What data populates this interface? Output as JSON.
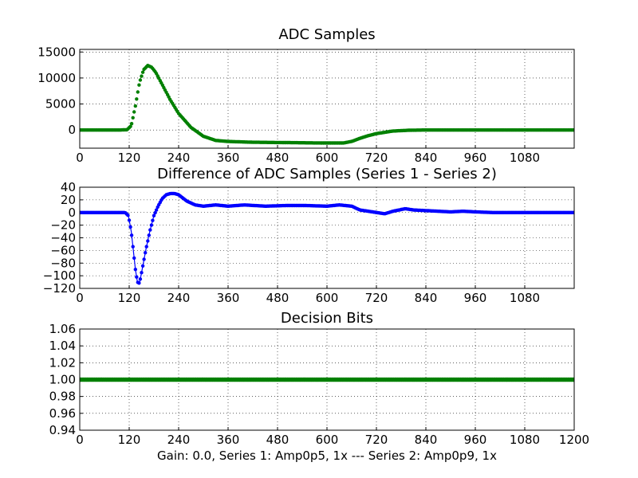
{
  "chart_data": [
    {
      "type": "scatter",
      "title": "ADC Samples",
      "xlabel": "",
      "ylabel": "",
      "xlim": [
        0,
        1200
      ],
      "ylim": [
        -3500,
        15500
      ],
      "xticks": [
        "0",
        "120",
        "240",
        "360",
        "480",
        "600",
        "720",
        "840",
        "960",
        "1080"
      ],
      "yticks": [
        "15000",
        "10000",
        "5000",
        "0"
      ],
      "grid": true,
      "colors": [
        "#ffffff",
        "#008000"
      ],
      "series": [
        {
          "x": [
            0,
            100,
            115,
            125,
            135,
            145,
            155,
            165,
            175,
            185,
            200,
            220,
            240,
            270,
            300,
            330,
            360,
            420,
            480,
            540,
            600,
            640,
            660,
            680,
            700,
            720,
            760,
            800,
            840,
            900,
            1000,
            1100,
            1200
          ],
          "y": [
            0,
            0,
            50,
            800,
            4500,
            9000,
            11500,
            12300,
            12000,
            11000,
            8800,
            5800,
            3200,
            500,
            -1200,
            -2000,
            -2200,
            -2350,
            -2400,
            -2450,
            -2500,
            -2500,
            -2200,
            -1600,
            -1100,
            -700,
            -200,
            -50,
            0,
            0,
            0,
            0,
            0
          ]
        },
        {
          "x": [
            0,
            100,
            115,
            125,
            135,
            145,
            155,
            165,
            175,
            185,
            200,
            220,
            240,
            270,
            300,
            330,
            360,
            420,
            480,
            540,
            600,
            640,
            660,
            680,
            700,
            720,
            760,
            800,
            840,
            900,
            1000,
            1100,
            1200
          ],
          "y": [
            0,
            0,
            50,
            850,
            4600,
            9100,
            11600,
            12400,
            12050,
            11000,
            8750,
            5750,
            3180,
            490,
            -1210,
            -2010,
            -2210,
            -2360,
            -2410,
            -2460,
            -2510,
            -2510,
            -2205,
            -1603,
            -1102,
            -702,
            -202,
            -52,
            0,
            0,
            0,
            0,
            0
          ]
        }
      ]
    },
    {
      "type": "line",
      "title": "Difference of ADC Samples (Series 1 - Series 2)",
      "xlabel": "",
      "ylabel": "",
      "xlim": [
        0,
        1200
      ],
      "ylim": [
        -120,
        40
      ],
      "xticks": [
        "0",
        "120",
        "240",
        "360",
        "480",
        "600",
        "720",
        "840",
        "960",
        "1080"
      ],
      "yticks": [
        "40",
        "20",
        "0",
        "−20",
        "−40",
        "−60",
        "−80",
        "−100",
        "−120"
      ],
      "grid": true,
      "colors": [
        "#0000ff"
      ],
      "series": [
        {
          "x": [
            0,
            60,
            110,
            118,
            125,
            130,
            135,
            140,
            145,
            150,
            160,
            170,
            180,
            190,
            200,
            210,
            220,
            230,
            240,
            260,
            280,
            300,
            330,
            360,
            400,
            450,
            500,
            550,
            600,
            630,
            660,
            680,
            700,
            720,
            740,
            760,
            790,
            810,
            840,
            870,
            900,
            930,
            960,
            1000,
            1050,
            1100,
            1150,
            1200
          ],
          "y": [
            0,
            0,
            0,
            -5,
            -30,
            -60,
            -90,
            -110,
            -112,
            -95,
            -60,
            -30,
            -5,
            10,
            22,
            28,
            30,
            30,
            28,
            18,
            12,
            10,
            12,
            10,
            12,
            10,
            11,
            11,
            10,
            12,
            10,
            4,
            2,
            0,
            -2,
            2,
            6,
            4,
            3,
            2,
            1,
            2,
            1,
            0,
            0,
            0,
            0,
            0
          ]
        }
      ]
    },
    {
      "type": "scatter",
      "title": "Decision Bits",
      "xlabel": "Gain: 0.0, Series 1: Amp0p5, 1x --- Series 2: Amp0p9, 1x",
      "ylabel": "",
      "xlim": [
        0,
        1200
      ],
      "ylim": [
        0.94,
        1.06
      ],
      "xticks": [
        "0",
        "120",
        "240",
        "360",
        "480",
        "600",
        "720",
        "840",
        "960",
        "1080",
        "1200"
      ],
      "yticks": [
        "1.06",
        "1.04",
        "1.02",
        "1.00",
        "0.98",
        "0.96",
        "0.94"
      ],
      "grid": true,
      "colors": [
        "#008000"
      ],
      "series": [
        {
          "x": [
            0,
            1200
          ],
          "y": [
            1.0,
            1.0
          ]
        }
      ]
    }
  ]
}
